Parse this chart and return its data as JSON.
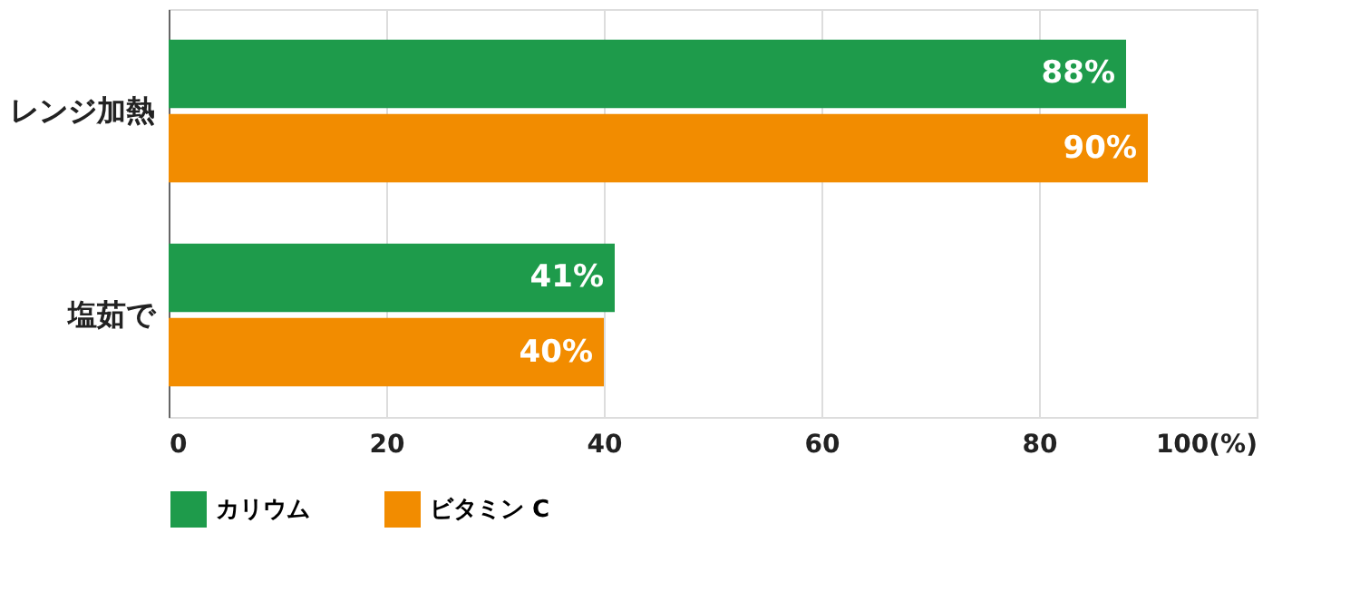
{
  "chart_data": {
    "type": "bar",
    "orientation": "horizontal",
    "categories": [
      "レンジ加熱",
      "塩茹で"
    ],
    "series": [
      {
        "name": "カリウム",
        "color": "#1e9b4b",
        "values": [
          88,
          41
        ],
        "value_labels": [
          "88%",
          "41%"
        ]
      },
      {
        "name": "ビタミン C",
        "color": "#f28c00",
        "values": [
          90,
          40
        ],
        "value_labels": [
          "90%",
          "40%"
        ]
      }
    ],
    "xlim": [
      0,
      100
    ],
    "xticks": [
      0,
      20,
      40,
      60,
      80,
      {
        "value": 100,
        "label": "100(%)"
      }
    ],
    "grid": "x",
    "legend": "bottom"
  }
}
